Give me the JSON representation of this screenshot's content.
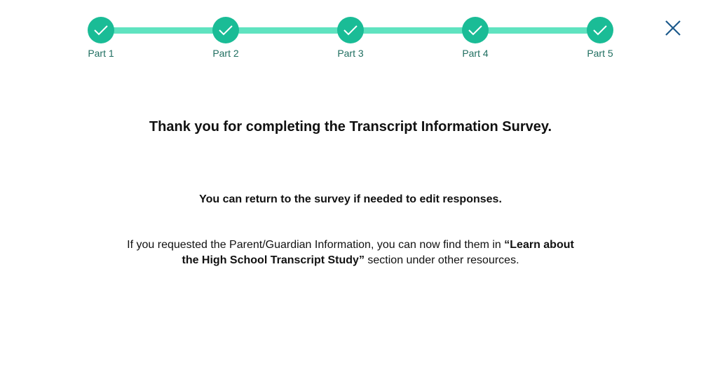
{
  "progress": {
    "steps": [
      {
        "label": "Part 1",
        "status": "complete"
      },
      {
        "label": "Part 2",
        "status": "complete"
      },
      {
        "label": "Part 3",
        "status": "complete"
      },
      {
        "label": "Part 4",
        "status": "complete"
      },
      {
        "label": "Part 5",
        "status": "complete"
      }
    ],
    "colors": {
      "circle": "#1abc96",
      "track": "#5fe3c0",
      "label": "#1f6e60"
    }
  },
  "close_icon": "close-icon",
  "main": {
    "title": "Thank you for completing the Transcript Information Survey.",
    "subtitle": "You can return to the survey if needed to edit responses.",
    "info_before": "If you requested the Parent/Guardian Information, you can now find them in ",
    "info_bold": "“Learn about the High School Transcript Study”",
    "info_after": " section under other resources."
  }
}
